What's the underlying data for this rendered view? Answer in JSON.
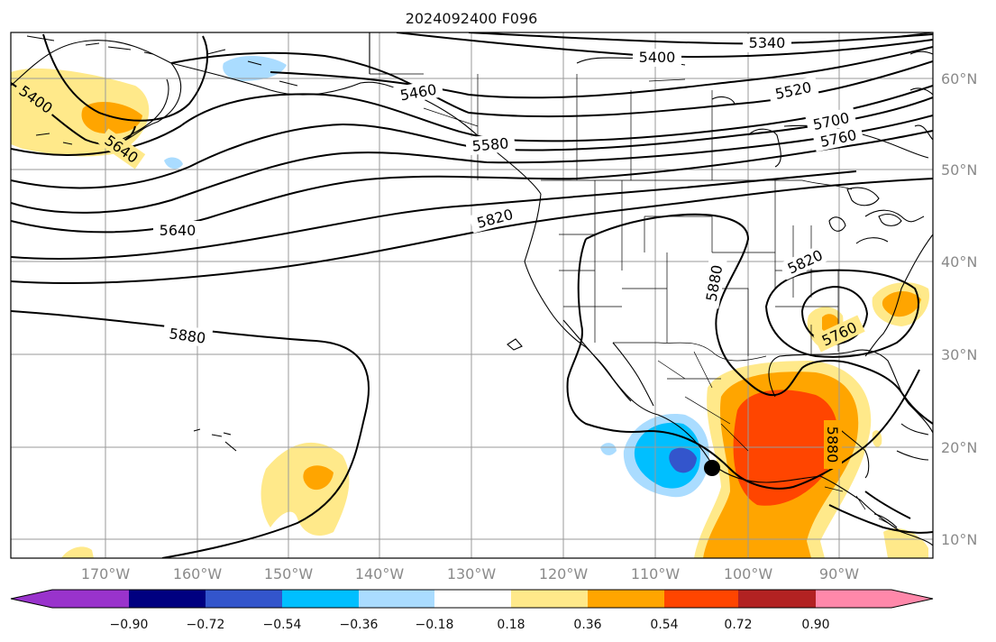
{
  "title": "2024092400 F096",
  "map": {
    "lat_labels": [
      "60°N",
      "50°N",
      "40°N",
      "30°N",
      "20°N",
      "10°N"
    ],
    "lon_labels": [
      "170°W",
      "160°W",
      "150°W",
      "140°W",
      "130°W",
      "120°W",
      "110°W",
      "100°W",
      "90°W"
    ],
    "contour_labels": [
      "5340",
      "5400",
      "5400",
      "5460",
      "5520",
      "5580",
      "5640",
      "5640",
      "5700",
      "5760",
      "5760",
      "5820",
      "5820",
      "5880",
      "5880",
      "5880"
    ],
    "marker": "storm-center-dot"
  },
  "colorbar": {
    "ticks": [
      "−0.90",
      "−0.72",
      "−0.54",
      "−0.36",
      "−0.18",
      "0.18",
      "0.36",
      "0.54",
      "0.72",
      "0.90"
    ],
    "colors": [
      "#9933cc",
      "#000080",
      "#3355cc",
      "#00bfff",
      "#aadcff",
      "#ffffff",
      "#ffe98a",
      "#ffa500",
      "#ff4500",
      "#b22222",
      "#ff88aa"
    ]
  }
}
